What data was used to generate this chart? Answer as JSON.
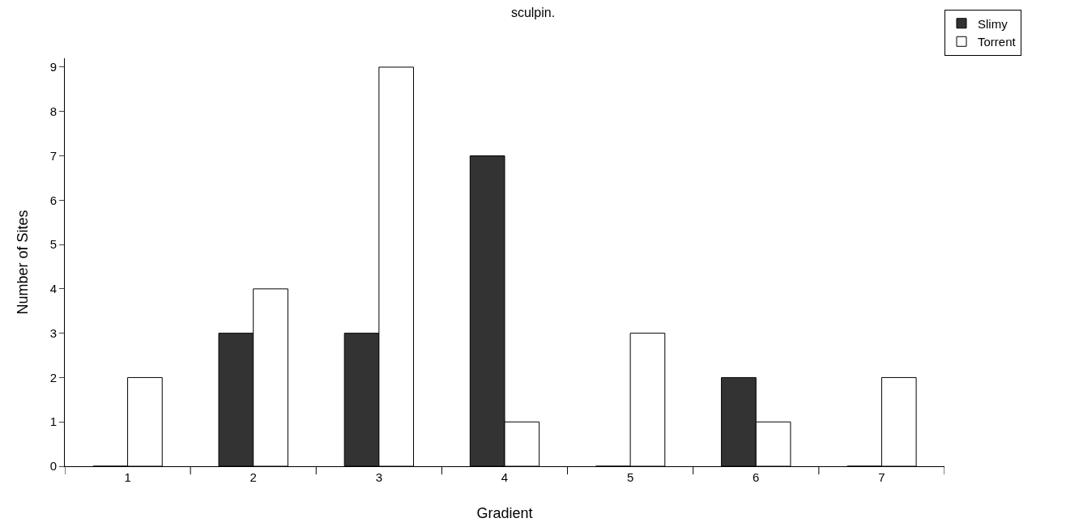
{
  "chart_data": {
    "type": "bar",
    "title": "sculpin.",
    "xlabel": "Gradient",
    "ylabel": "Number of Sites",
    "categories": [
      "1",
      "2",
      "3",
      "4",
      "5",
      "6",
      "7"
    ],
    "series": [
      {
        "name": "Slimy",
        "color": "#333333",
        "values": [
          0,
          3,
          3,
          7,
          0,
          2,
          0
        ]
      },
      {
        "name": "Torrent",
        "color": "#ffffff",
        "values": [
          2,
          4,
          9,
          1,
          3,
          1,
          2
        ]
      }
    ],
    "ylim": [
      0,
      9.2
    ],
    "yticks": [
      0,
      1,
      2,
      3,
      4,
      5,
      6,
      7,
      8,
      9
    ],
    "grid": false,
    "legend": "top right"
  }
}
